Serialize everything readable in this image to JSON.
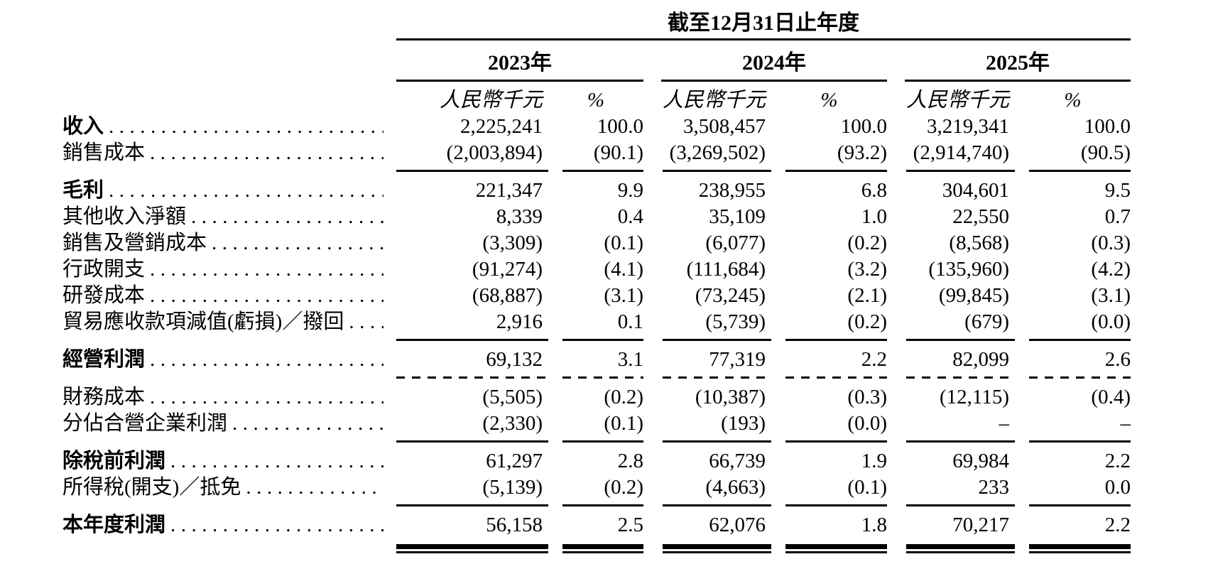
{
  "page": {
    "background_color": "#ffffff",
    "text_color": "#000000"
  },
  "table": {
    "title": "截至12月31日止年度",
    "column_groups": [
      {
        "year": "2023年",
        "amount_header": "人民幣千元",
        "percent_header": "%"
      },
      {
        "year": "2024年",
        "amount_header": "人民幣千元",
        "percent_header": "%"
      },
      {
        "year": "2025年",
        "amount_header": "人民幣千元",
        "percent_header": "%"
      }
    ],
    "rows": [
      {
        "label": "收入",
        "bold": true,
        "rule_below": "none",
        "values": [
          "2,225,241",
          "100.0",
          "3,508,457",
          "100.0",
          "3,219,341",
          "100.0"
        ]
      },
      {
        "label": "銷售成本",
        "bold": false,
        "rule_below": "solid",
        "values": [
          "(2,003,894)",
          "(90.1)",
          "(3,269,502)",
          "(93.2)",
          "(2,914,740)",
          "(90.5)"
        ]
      },
      {
        "label": "毛利",
        "bold": true,
        "rule_below": "none",
        "values": [
          "221,347",
          "9.9",
          "238,955",
          "6.8",
          "304,601",
          "9.5"
        ]
      },
      {
        "label": "其他收入淨額",
        "bold": false,
        "rule_below": "none",
        "values": [
          "8,339",
          "0.4",
          "35,109",
          "1.0",
          "22,550",
          "0.7"
        ]
      },
      {
        "label": "銷售及營銷成本",
        "bold": false,
        "rule_below": "none",
        "values": [
          "(3,309)",
          "(0.1)",
          "(6,077)",
          "(0.2)",
          "(8,568)",
          "(0.3)"
        ]
      },
      {
        "label": "行政開支",
        "bold": false,
        "rule_below": "none",
        "values": [
          "(91,274)",
          "(4.1)",
          "(111,684)",
          "(3.2)",
          "(135,960)",
          "(4.2)"
        ]
      },
      {
        "label": "研發成本",
        "bold": false,
        "rule_below": "none",
        "values": [
          "(68,887)",
          "(3.1)",
          "(73,245)",
          "(2.1)",
          "(99,845)",
          "(3.1)"
        ]
      },
      {
        "label": "貿易應收款項減值(虧損)／撥回",
        "bold": false,
        "rule_below": "solid",
        "values": [
          "2,916",
          "0.1",
          "(5,739)",
          "(0.2)",
          "(679)",
          "(0.0)"
        ]
      },
      {
        "label": "經營利潤",
        "bold": true,
        "rule_below": "dashed",
        "values": [
          "69,132",
          "3.1",
          "77,319",
          "2.2",
          "82,099",
          "2.6"
        ]
      },
      {
        "label": "財務成本",
        "bold": false,
        "rule_below": "none",
        "values": [
          "(5,505)",
          "(0.2)",
          "(10,387)",
          "(0.3)",
          "(12,115)",
          "(0.4)"
        ]
      },
      {
        "label": "分佔合營企業利潤",
        "bold": false,
        "rule_below": "solid",
        "values": [
          "(2,330)",
          "(0.1)",
          "(193)",
          "(0.0)",
          "–",
          "–"
        ]
      },
      {
        "label": "除稅前利潤",
        "bold": true,
        "rule_below": "none",
        "values": [
          "61,297",
          "2.8",
          "66,739",
          "1.9",
          "69,984",
          "2.2"
        ]
      },
      {
        "label": "所得稅(開支)／抵免",
        "bold": false,
        "rule_below": "solid",
        "values": [
          "(5,139)",
          "(0.2)",
          "(4,663)",
          "(0.1)",
          "233",
          "0.0"
        ]
      },
      {
        "label": "本年度利潤",
        "bold": true,
        "rule_below": "double",
        "values": [
          "56,158",
          "2.5",
          "62,076",
          "1.8",
          "70,217",
          "2.2"
        ]
      }
    ]
  }
}
